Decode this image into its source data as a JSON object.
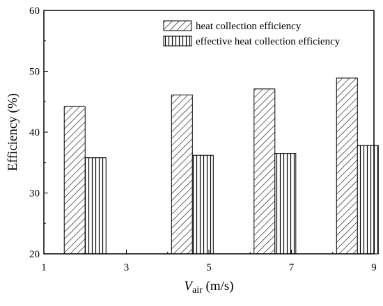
{
  "chart_data": {
    "type": "bar",
    "title": "",
    "xlabel": {
      "main": "V",
      "subscript": "air",
      "unit": " (m/s)"
    },
    "ylabel": "Efficiency (%)",
    "xlim": [
      1,
      9
    ],
    "ylim": [
      20,
      60
    ],
    "xticks": [
      1,
      3,
      5,
      7,
      9
    ],
    "yticks": [
      20,
      30,
      40,
      50,
      60
    ],
    "x": [
      2,
      4.6,
      6.6,
      8.6
    ],
    "grid": false,
    "legend_position": "top-right",
    "series": [
      {
        "name": "heat collection efficiency",
        "values": [
          44.2,
          46.1,
          47.1,
          48.9
        ],
        "pattern": "diagonal-hatch",
        "x_offset": -0.5
      },
      {
        "name": "effective heat collection efficiency",
        "values": [
          35.8,
          36.2,
          36.5,
          37.8
        ],
        "pattern": "vertical-lines",
        "x_offset": 0.5
      }
    ],
    "colors": {
      "stroke": "#000000",
      "background": "#ffffff"
    }
  }
}
